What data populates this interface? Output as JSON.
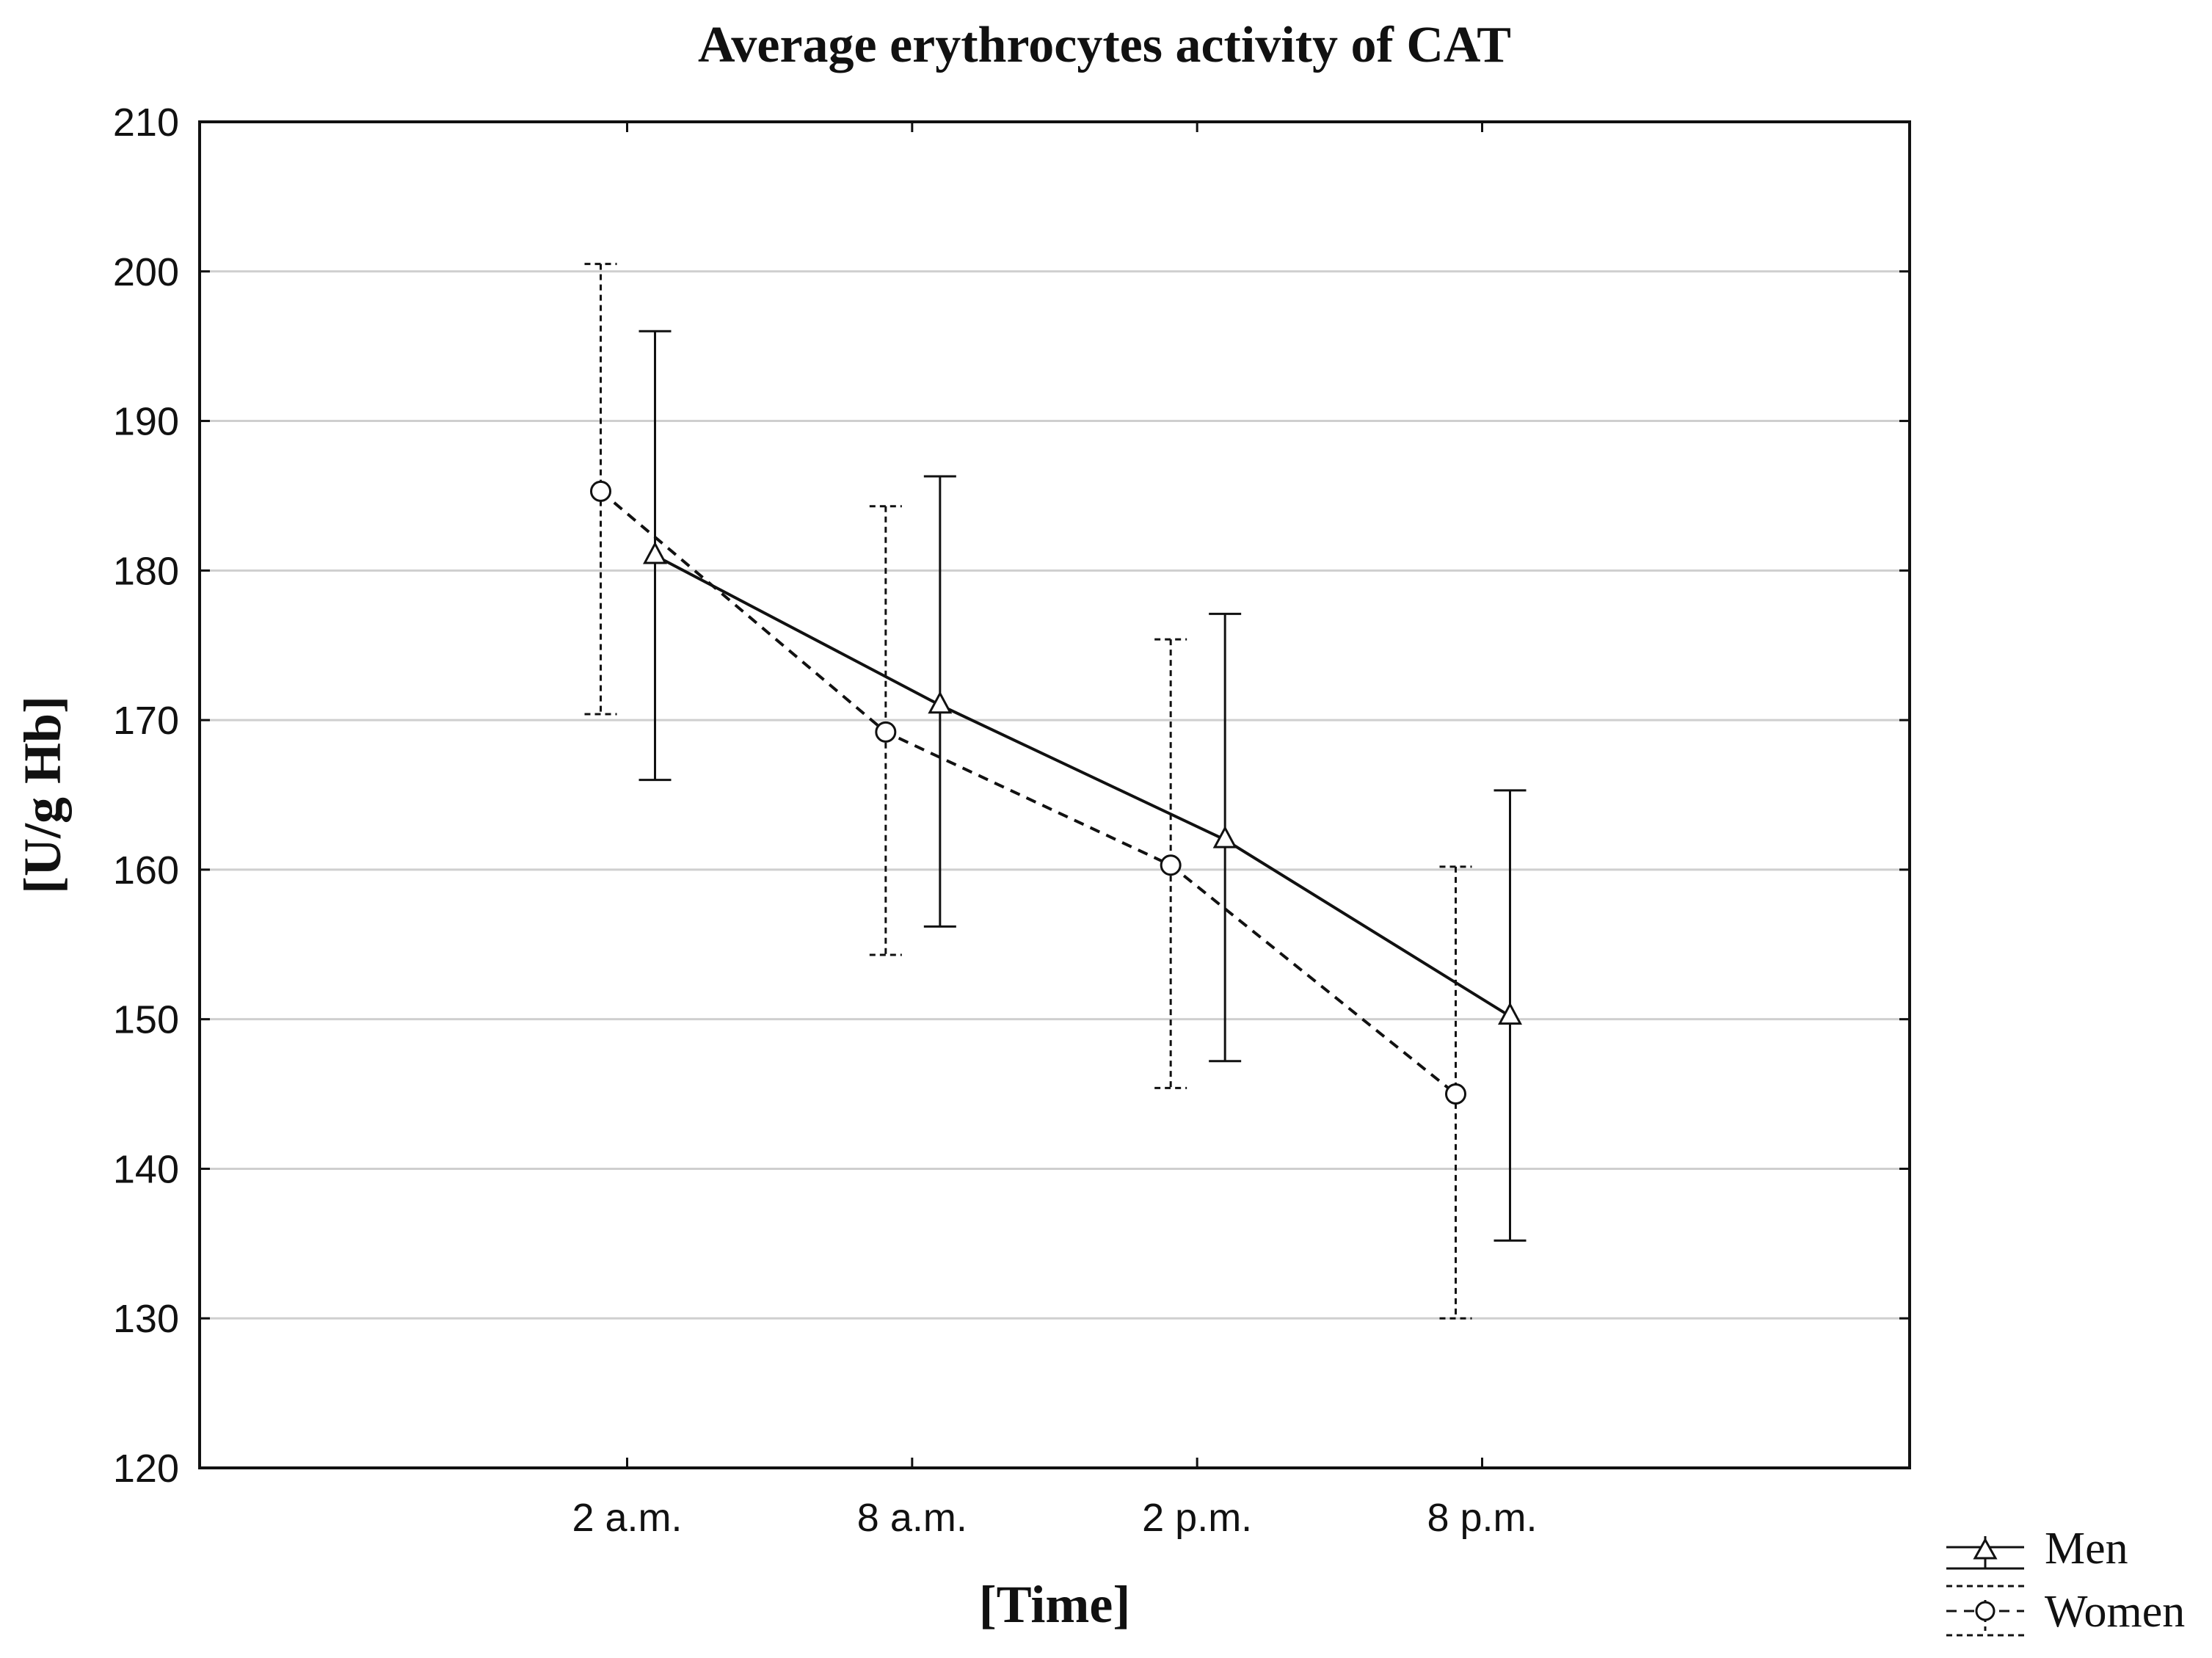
{
  "chart_data": {
    "type": "line",
    "title": "Average erythrocytes activity of CAT",
    "xlabel": "[Time]",
    "ylabel": "[U/g Hb]",
    "categories": [
      "2 a.m.",
      "8 a.m.",
      "2 p.m.",
      "8 p.m."
    ],
    "ylim": [
      120,
      210
    ],
    "yticks": [
      120,
      130,
      140,
      150,
      160,
      170,
      180,
      190,
      200,
      210
    ],
    "grid": true,
    "legend_position": "bottom-right",
    "series": [
      {
        "name": "Men",
        "marker": "triangle",
        "line_style": "solid",
        "values": [
          181,
          171,
          162,
          150.2
        ],
        "err_low": [
          166,
          156.2,
          147.2,
          135.2
        ],
        "err_high": [
          196,
          186.3,
          177.1,
          165.3
        ],
        "color": "#111111"
      },
      {
        "name": "Women",
        "marker": "circle",
        "line_style": "dashed",
        "values": [
          185.3,
          169.2,
          160.3,
          145
        ],
        "err_low": [
          170.4,
          154.3,
          145.4,
          130
        ],
        "err_high": [
          200.5,
          184.3,
          175.4,
          160.2
        ],
        "color": "#111111"
      }
    ]
  }
}
